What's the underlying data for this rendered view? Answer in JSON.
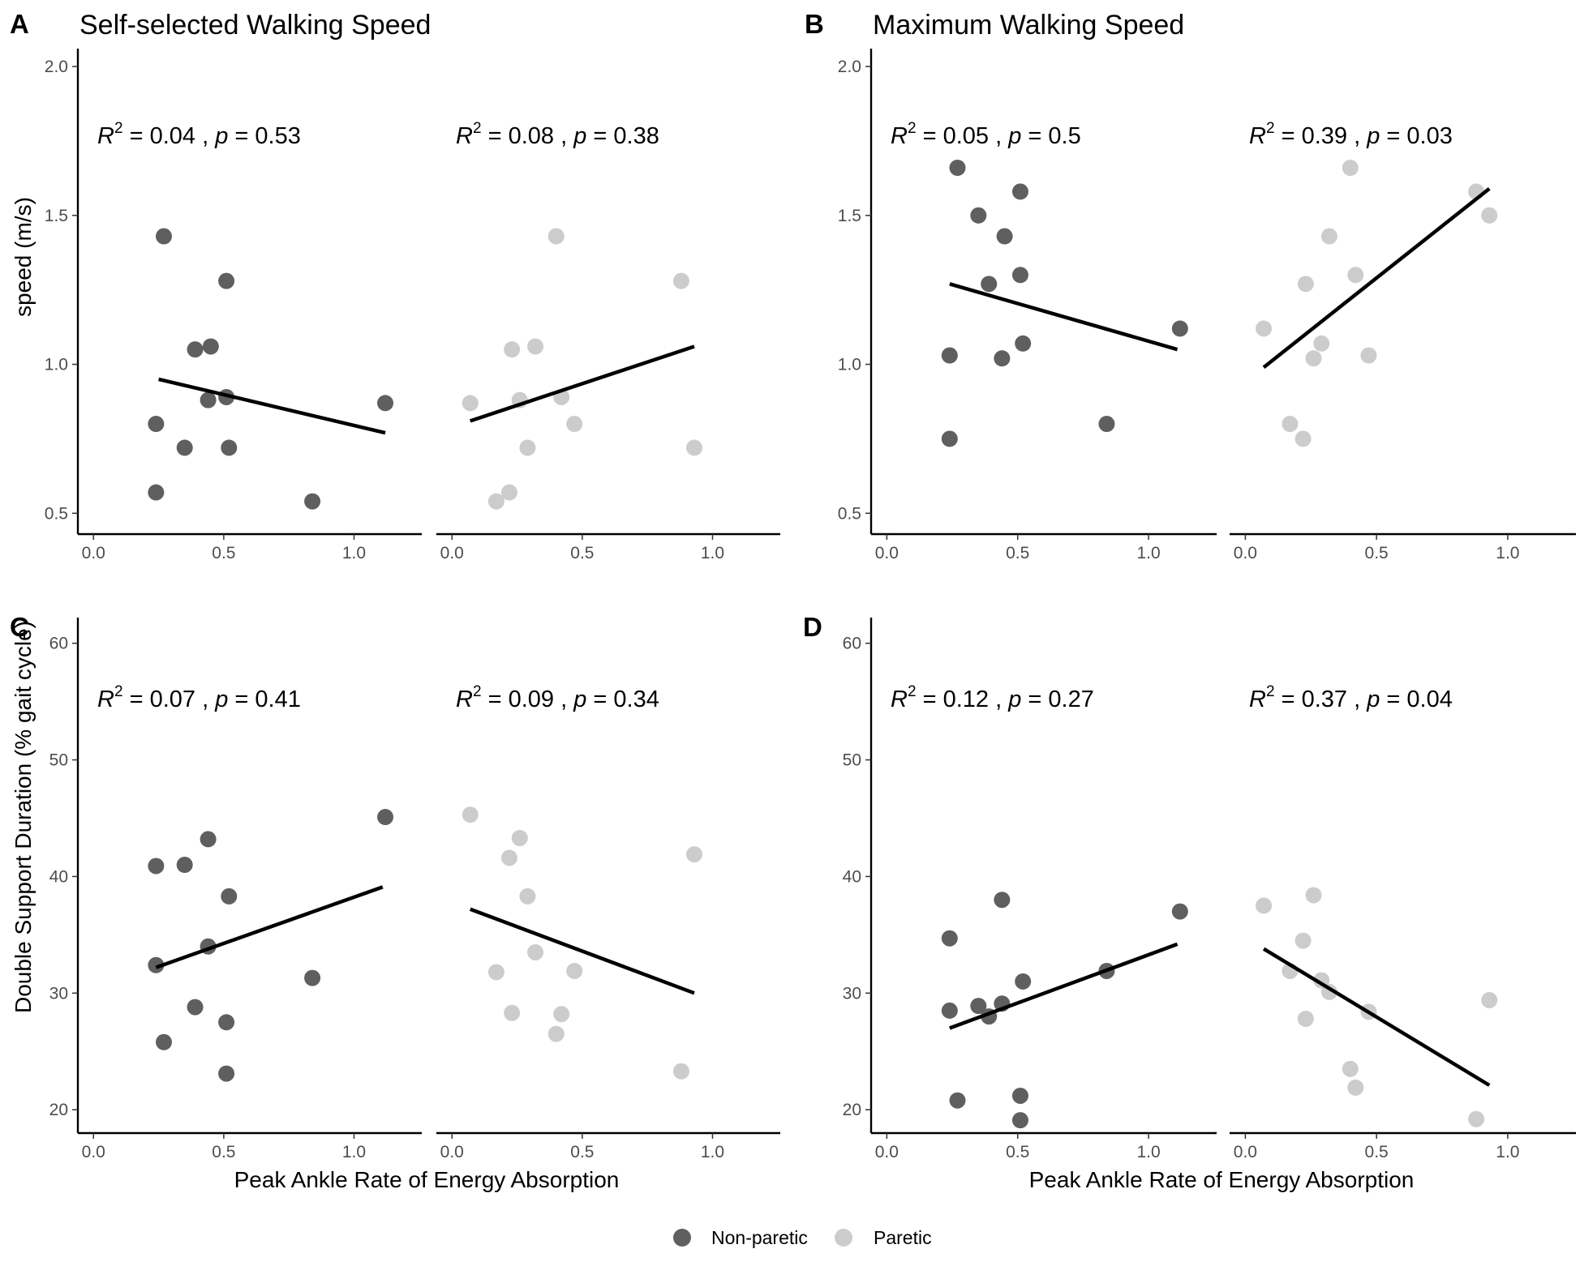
{
  "chart_data": {
    "type": "scatter",
    "colors": {
      "Non-paretic": "#5f5f5f",
      "Paretic": "#cccccc",
      "fit_line": "#000000",
      "axis": "#000000"
    },
    "legend": {
      "entries": [
        "Non-paretic",
        "Paretic"
      ],
      "position": "bottom"
    },
    "xlabel": "Peak Ankle Rate of Energy Absorption",
    "panels": [
      {
        "letter": "A",
        "title": "Self-selected Walking Speed",
        "ylabel": "speed (m/s)",
        "ylim": [
          0.43,
          2.06
        ],
        "yticks": [
          0.5,
          1.0,
          1.5,
          2.0
        ],
        "ytick_labels": [
          "0.5",
          "1.0",
          "1.5",
          "2.0"
        ],
        "xlim": [
          -0.06,
          1.26
        ],
        "xticks": [
          0.0,
          0.5,
          1.0
        ],
        "xtick_labels": [
          "0.0",
          "0.5",
          "1.0"
        ],
        "facets": [
          {
            "group": "Non-paretic",
            "annotation": {
              "r2": "0.04",
              "p": "0.53"
            },
            "points": [
              [
                0.27,
                1.43
              ],
              [
                0.51,
                1.28
              ],
              [
                0.39,
                1.05
              ],
              [
                0.45,
                1.06
              ],
              [
                0.24,
                0.8
              ],
              [
                0.35,
                0.72
              ],
              [
                0.44,
                0.88
              ],
              [
                0.51,
                0.89
              ],
              [
                0.52,
                0.72
              ],
              [
                0.24,
                0.57
              ],
              [
                0.84,
                0.54
              ],
              [
                1.12,
                0.87
              ]
            ],
            "fit": [
              [
                0.25,
                0.95
              ],
              [
                1.12,
                0.77
              ]
            ]
          },
          {
            "group": "Paretic",
            "annotation": {
              "r2": "0.08",
              "p": "0.38"
            },
            "points": [
              [
                0.4,
                1.43
              ],
              [
                0.88,
                1.28
              ],
              [
                0.23,
                1.05
              ],
              [
                0.32,
                1.06
              ],
              [
                0.07,
                0.87
              ],
              [
                0.26,
                0.88
              ],
              [
                0.42,
                0.89
              ],
              [
                0.47,
                0.8
              ],
              [
                0.29,
                0.72
              ],
              [
                0.93,
                0.72
              ],
              [
                0.22,
                0.57
              ],
              [
                0.17,
                0.54
              ]
            ],
            "fit": [
              [
                0.07,
                0.81
              ],
              [
                0.93,
                1.06
              ]
            ]
          }
        ]
      },
      {
        "letter": "B",
        "title": "Maximum Walking Speed",
        "ylabel": "",
        "ylim": [
          0.43,
          2.06
        ],
        "yticks": [
          0.5,
          1.0,
          1.5,
          2.0
        ],
        "ytick_labels": [
          "0.5",
          "1.0",
          "1.5",
          "2.0"
        ],
        "xlim": [
          -0.06,
          1.26
        ],
        "xticks": [
          0.0,
          0.5,
          1.0
        ],
        "xtick_labels": [
          "0.0",
          "0.5",
          "1.0"
        ],
        "facets": [
          {
            "group": "Non-paretic",
            "annotation": {
              "r2": "0.05",
              "p": "0.5"
            },
            "points": [
              [
                0.27,
                1.66
              ],
              [
                0.51,
                1.58
              ],
              [
                0.35,
                1.5
              ],
              [
                0.45,
                1.43
              ],
              [
                0.39,
                1.27
              ],
              [
                0.51,
                1.3
              ],
              [
                1.12,
                1.12
              ],
              [
                0.52,
                1.07
              ],
              [
                0.24,
                1.03
              ],
              [
                0.44,
                1.02
              ],
              [
                0.84,
                0.8
              ],
              [
                0.24,
                0.75
              ]
            ],
            "fit": [
              [
                0.24,
                1.27
              ],
              [
                1.11,
                1.05
              ]
            ]
          },
          {
            "group": "Paretic",
            "annotation": {
              "r2": "0.39",
              "p": "0.03"
            },
            "points": [
              [
                0.4,
                1.66
              ],
              [
                0.88,
                1.58
              ],
              [
                0.93,
                1.5
              ],
              [
                0.32,
                1.43
              ],
              [
                0.23,
                1.27
              ],
              [
                0.42,
                1.3
              ],
              [
                0.07,
                1.12
              ],
              [
                0.29,
                1.07
              ],
              [
                0.47,
                1.03
              ],
              [
                0.26,
                1.02
              ],
              [
                0.17,
                0.8
              ],
              [
                0.22,
                0.75
              ]
            ],
            "fit": [
              [
                0.07,
                0.99
              ],
              [
                0.93,
                1.59
              ]
            ]
          }
        ]
      },
      {
        "letter": "C",
        "title": "",
        "ylabel": "Double Support Duration (% gait cycle)",
        "ylim": [
          18,
          62.2
        ],
        "yticks": [
          20,
          30,
          40,
          50,
          60
        ],
        "ytick_labels": [
          "20",
          "30",
          "40",
          "50",
          "60"
        ],
        "xlim": [
          -0.06,
          1.26
        ],
        "xticks": [
          0.0,
          0.5,
          1.0
        ],
        "xtick_labels": [
          "0.0",
          "0.5",
          "1.0"
        ],
        "facets": [
          {
            "group": "Non-paretic",
            "annotation": {
              "r2": "0.07",
              "p": "0.41"
            },
            "points": [
              [
                1.12,
                45.1
              ],
              [
                0.44,
                43.2
              ],
              [
                0.24,
                40.9
              ],
              [
                0.35,
                41
              ],
              [
                0.52,
                38.3
              ],
              [
                0.44,
                34
              ],
              [
                0.24,
                32.4
              ],
              [
                0.84,
                31.3
              ],
              [
                0.39,
                28.8
              ],
              [
                0.51,
                27.5
              ],
              [
                0.27,
                25.8
              ],
              [
                0.51,
                23.1
              ]
            ],
            "fit": [
              [
                0.24,
                32.2
              ],
              [
                1.11,
                39.1
              ]
            ]
          },
          {
            "group": "Paretic",
            "annotation": {
              "r2": "0.09",
              "p": "0.34"
            },
            "points": [
              [
                0.07,
                45.3
              ],
              [
                0.26,
                43.3
              ],
              [
                0.93,
                41.9
              ],
              [
                0.22,
                41.6
              ],
              [
                0.29,
                38.3
              ],
              [
                0.32,
                33.5
              ],
              [
                0.17,
                31.8
              ],
              [
                0.47,
                31.9
              ],
              [
                0.23,
                28.3
              ],
              [
                0.42,
                28.2
              ],
              [
                0.4,
                26.5
              ],
              [
                0.88,
                23.3
              ]
            ],
            "fit": [
              [
                0.07,
                37.2
              ],
              [
                0.93,
                30
              ]
            ]
          }
        ]
      },
      {
        "letter": "D",
        "title": "",
        "ylabel": "",
        "ylim": [
          18,
          62.2
        ],
        "yticks": [
          20,
          30,
          40,
          50,
          60
        ],
        "ytick_labels": [
          "20",
          "30",
          "40",
          "50",
          "60"
        ],
        "xlim": [
          -0.06,
          1.26
        ],
        "xticks": [
          0.0,
          0.5,
          1.0
        ],
        "xtick_labels": [
          "0.0",
          "0.5",
          "1.0"
        ],
        "facets": [
          {
            "group": "Non-paretic",
            "annotation": {
              "r2": "0.12",
              "p": "0.27"
            },
            "points": [
              [
                0.44,
                38
              ],
              [
                1.12,
                37
              ],
              [
                0.24,
                34.7
              ],
              [
                0.84,
                31.9
              ],
              [
                0.52,
                31
              ],
              [
                0.24,
                28.5
              ],
              [
                0.35,
                28.9
              ],
              [
                0.44,
                29.1
              ],
              [
                0.39,
                28
              ],
              [
                0.27,
                20.8
              ],
              [
                0.51,
                21.2
              ],
              [
                0.51,
                19.1
              ]
            ],
            "fit": [
              [
                0.24,
                27
              ],
              [
                1.11,
                34.2
              ]
            ]
          },
          {
            "group": "Paretic",
            "annotation": {
              "r2": "0.37",
              "p": "0.04"
            },
            "points": [
              [
                0.07,
                37.5
              ],
              [
                0.26,
                38.4
              ],
              [
                0.22,
                34.5
              ],
              [
                0.17,
                31.9
              ],
              [
                0.29,
                31.1
              ],
              [
                0.32,
                30.1
              ],
              [
                0.47,
                28.4
              ],
              [
                0.23,
                27.8
              ],
              [
                0.93,
                29.4
              ],
              [
                0.4,
                23.5
              ],
              [
                0.42,
                21.9
              ],
              [
                0.88,
                19.2
              ]
            ],
            "fit": [
              [
                0.07,
                33.8
              ],
              [
                0.93,
                22.1
              ]
            ]
          }
        ]
      }
    ]
  }
}
